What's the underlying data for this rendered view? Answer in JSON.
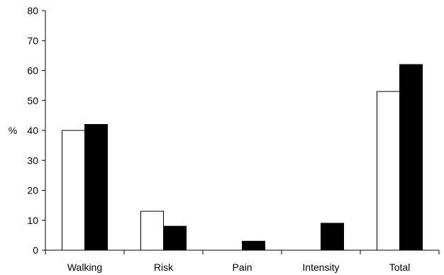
{
  "chart_data": {
    "type": "bar",
    "categories": [
      "Walking",
      "Risk",
      "Pain",
      "Intensity",
      "Total"
    ],
    "series": [
      {
        "values": [
          40,
          13,
          0,
          0,
          53
        ],
        "color": "#ffffff"
      },
      {
        "values": [
          42,
          8,
          3,
          9,
          62
        ],
        "color": "#000000"
      }
    ],
    "ylabel": "%",
    "ylim": [
      0,
      80
    ],
    "yticks": [
      0,
      10,
      20,
      30,
      40,
      50,
      60,
      70,
      80
    ],
    "grid": false
  }
}
